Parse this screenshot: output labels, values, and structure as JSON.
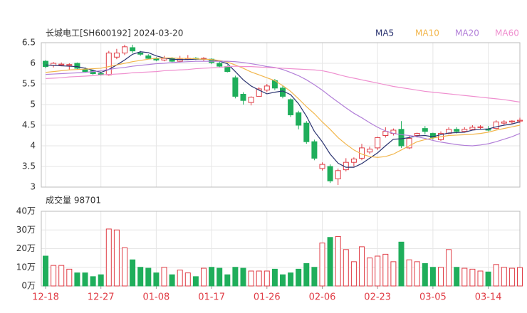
{
  "chart_data": [
    {
      "type": "candlestick",
      "title": "长城电工[SH600192] 2024-03-20",
      "categories": [
        "12-18",
        null,
        null,
        null,
        null,
        null,
        null,
        "12-27",
        null,
        null,
        null,
        null,
        null,
        null,
        "01-08",
        null,
        null,
        null,
        null,
        null,
        null,
        "01-17",
        null,
        null,
        null,
        null,
        null,
        null,
        "01-26",
        null,
        null,
        null,
        null,
        null,
        null,
        "02-06",
        null,
        null,
        null,
        null,
        null,
        null,
        "02-23",
        null,
        null,
        null,
        null,
        null,
        null,
        "03-05",
        null,
        null,
        null,
        null,
        null,
        null,
        "03-14",
        null,
        null,
        null,
        null
      ],
      "open": [
        6.05,
        5.95,
        5.96,
        5.95,
        6.0,
        5.85,
        5.82,
        5.75,
        5.72,
        6.15,
        6.25,
        6.38,
        6.25,
        6.18,
        6.12,
        6.08,
        6.12,
        6.05,
        6.1,
        6.12,
        6.1,
        6.1,
        6.0,
        5.92,
        5.65,
        5.25,
        5.05,
        5.2,
        5.35,
        5.58,
        5.4,
        5.12,
        4.8,
        4.55,
        4.1,
        3.45,
        3.5,
        3.2,
        3.42,
        3.6,
        3.7,
        3.85,
        3.95,
        4.25,
        4.3,
        4.4,
        3.95,
        4.25,
        4.42,
        4.3,
        4.15,
        4.3,
        4.4,
        4.35,
        4.4,
        4.45,
        4.4,
        4.42,
        4.55,
        4.58,
        4.6
      ],
      "high": [
        6.08,
        6.03,
        6.02,
        6.0,
        6.02,
        5.9,
        5.85,
        5.8,
        6.3,
        6.35,
        6.45,
        6.45,
        6.3,
        6.22,
        6.15,
        6.18,
        6.15,
        6.18,
        6.2,
        6.15,
        6.15,
        6.12,
        6.05,
        5.95,
        5.7,
        5.3,
        5.2,
        5.42,
        5.5,
        5.62,
        5.45,
        5.15,
        4.85,
        4.6,
        4.15,
        3.6,
        3.55,
        3.45,
        3.7,
        3.72,
        4.05,
        3.98,
        4.22,
        4.45,
        4.42,
        4.6,
        4.25,
        4.32,
        4.48,
        4.32,
        4.35,
        4.45,
        4.45,
        4.45,
        4.5,
        4.5,
        4.48,
        4.62,
        4.62,
        4.62,
        4.68
      ],
      "low": [
        5.88,
        5.9,
        5.93,
        5.85,
        5.85,
        5.78,
        5.72,
        5.7,
        5.7,
        6.1,
        6.2,
        6.25,
        6.18,
        6.1,
        6.05,
        6.05,
        6.02,
        6.02,
        6.08,
        6.08,
        6.05,
        5.98,
        5.9,
        5.78,
        5.15,
        5.0,
        4.98,
        5.2,
        5.3,
        5.35,
        5.15,
        4.7,
        4.4,
        4.05,
        3.65,
        3.4,
        3.1,
        3.05,
        3.38,
        3.5,
        3.65,
        3.8,
        3.9,
        4.2,
        4.25,
        3.95,
        3.92,
        4.2,
        4.28,
        4.15,
        4.12,
        4.28,
        4.3,
        4.33,
        4.38,
        4.4,
        4.35,
        4.4,
        4.5,
        4.52,
        4.55
      ],
      "close": [
        5.92,
        6.0,
        5.98,
        5.97,
        5.88,
        5.8,
        5.75,
        5.72,
        6.25,
        6.25,
        6.4,
        6.3,
        6.22,
        6.12,
        6.08,
        6.12,
        6.05,
        6.1,
        6.12,
        6.1,
        6.12,
        6.02,
        5.93,
        5.8,
        5.2,
        5.1,
        5.18,
        5.38,
        5.45,
        5.4,
        5.2,
        4.75,
        4.5,
        4.1,
        3.7,
        3.55,
        3.15,
        3.4,
        3.6,
        3.68,
        3.95,
        3.92,
        4.2,
        4.35,
        4.38,
        4.0,
        4.18,
        4.3,
        4.35,
        4.2,
        4.3,
        4.4,
        4.35,
        4.4,
        4.45,
        4.46,
        4.38,
        4.58,
        4.58,
        4.6,
        4.62
      ],
      "up_color": "#e03c45",
      "down_color": "#1fae5b",
      "series": [
        {
          "name": "MA5",
          "color": "#2a3370",
          "values": [
            5.96,
            5.95,
            5.94,
            5.93,
            5.92,
            5.88,
            5.83,
            5.78,
            5.85,
            5.96,
            6.08,
            6.22,
            6.28,
            6.26,
            6.18,
            6.13,
            6.1,
            6.09,
            6.09,
            6.1,
            6.1,
            6.09,
            6.05,
            5.99,
            5.8,
            5.6,
            5.45,
            5.35,
            5.26,
            5.3,
            5.33,
            5.24,
            5.02,
            4.72,
            4.35,
            4.1,
            3.8,
            3.58,
            3.48,
            3.48,
            3.57,
            3.7,
            3.83,
            4.0,
            4.16,
            4.17,
            4.2,
            4.24,
            4.25,
            4.22,
            4.27,
            4.31,
            4.32,
            4.33,
            4.38,
            4.4,
            4.41,
            4.46,
            4.5,
            4.53,
            4.58
          ]
        },
        {
          "name": "MA10",
          "color": "#f2b64c",
          "values": [
            5.78,
            5.8,
            5.82,
            5.84,
            5.85,
            5.86,
            5.87,
            5.88,
            5.92,
            5.96,
            6.0,
            6.04,
            6.07,
            6.1,
            6.12,
            6.13,
            6.13,
            6.12,
            6.12,
            6.11,
            6.1,
            6.09,
            6.07,
            6.03,
            5.96,
            5.88,
            5.79,
            5.72,
            5.65,
            5.58,
            5.46,
            5.32,
            5.14,
            4.95,
            4.78,
            4.58,
            4.4,
            4.2,
            4.04,
            3.9,
            3.8,
            3.74,
            3.72,
            3.74,
            3.8,
            3.9,
            4.0,
            4.1,
            4.15,
            4.19,
            4.22,
            4.25,
            4.26,
            4.27,
            4.28,
            4.3,
            4.33,
            4.38,
            4.42,
            4.46,
            4.5
          ]
        },
        {
          "name": "MA20",
          "color": "#b27fd8",
          "values": [
            5.73,
            5.74,
            5.75,
            5.76,
            5.77,
            5.78,
            5.8,
            5.82,
            5.85,
            5.88,
            5.9,
            5.93,
            5.95,
            5.97,
            5.99,
            6.0,
            6.02,
            6.03,
            6.04,
            6.05,
            6.05,
            6.05,
            6.05,
            6.05,
            6.04,
            6.02,
            5.99,
            5.96,
            5.92,
            5.9,
            5.85,
            5.78,
            5.7,
            5.6,
            5.48,
            5.35,
            5.2,
            5.06,
            4.92,
            4.79,
            4.68,
            4.56,
            4.45,
            4.36,
            4.3,
            4.27,
            4.25,
            4.22,
            4.18,
            4.13,
            4.09,
            4.06,
            4.03,
            4.01,
            4.0,
            4.02,
            4.05,
            4.1,
            4.16,
            4.22,
            4.3
          ]
        },
        {
          "name": "MA60",
          "color": "#ef8fcf",
          "values": [
            5.63,
            5.64,
            5.65,
            5.67,
            5.68,
            5.69,
            5.7,
            5.72,
            5.73,
            5.74,
            5.75,
            5.77,
            5.78,
            5.79,
            5.8,
            5.82,
            5.83,
            5.84,
            5.85,
            5.87,
            5.88,
            5.89,
            5.9,
            5.92,
            5.93,
            5.92,
            5.92,
            5.91,
            5.9,
            5.89,
            5.88,
            5.87,
            5.86,
            5.85,
            5.84,
            5.82,
            5.78,
            5.73,
            5.68,
            5.64,
            5.6,
            5.56,
            5.52,
            5.48,
            5.44,
            5.41,
            5.38,
            5.35,
            5.32,
            5.3,
            5.28,
            5.26,
            5.24,
            5.22,
            5.2,
            5.18,
            5.16,
            5.14,
            5.12,
            5.09,
            5.06
          ]
        }
      ],
      "ylim": [
        3,
        6.5
      ],
      "yticks": [
        3,
        3.5,
        4,
        4.5,
        5,
        5.5,
        6,
        6.5
      ],
      "grid": true
    },
    {
      "type": "bar",
      "title": "成交量 98701",
      "values": [
        16,
        11,
        11,
        9,
        7,
        7,
        5,
        6,
        30.5,
        30,
        20.5,
        14,
        10,
        9.5,
        7,
        10,
        6,
        8.5,
        7,
        5,
        9.5,
        10,
        9.5,
        6,
        10,
        9.5,
        8,
        8,
        8,
        9,
        6,
        7,
        9,
        12,
        10,
        23,
        26,
        26.5,
        19.5,
        13,
        21,
        15,
        16,
        17,
        13,
        23.5,
        14,
        13,
        12,
        10,
        10,
        19.5,
        10,
        9.5,
        9,
        8,
        7.5,
        11.5,
        10,
        9.5,
        9.87
      ],
      "ylim": [
        0,
        40
      ],
      "yticks": [
        {
          "value": 0,
          "label": "0万"
        },
        {
          "value": 10,
          "label": "10万"
        },
        {
          "value": 20,
          "label": "20万"
        },
        {
          "value": 30,
          "label": "30万"
        },
        {
          "value": 40,
          "label": "40万"
        }
      ],
      "grid": true
    }
  ]
}
